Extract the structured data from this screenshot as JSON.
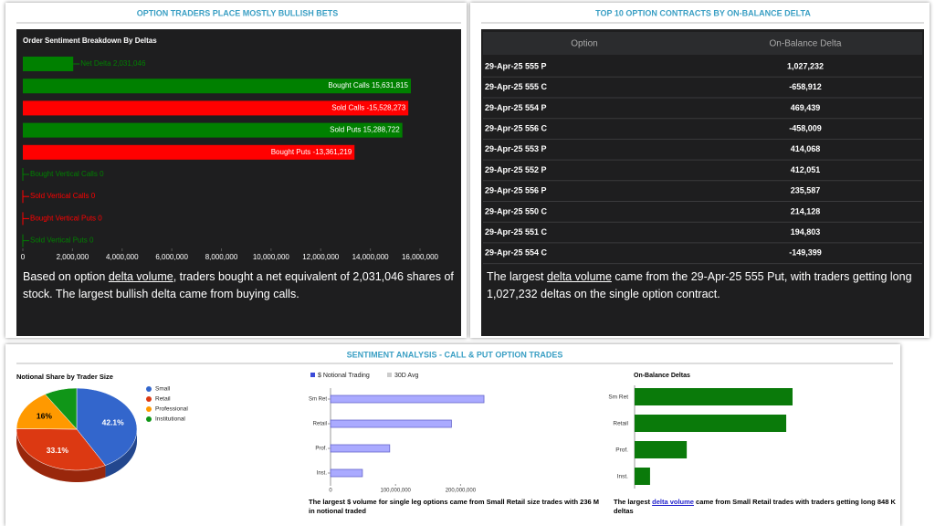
{
  "panels": [
    {
      "title": "OPTION TRADERS PLACE MOSTLY BULLISH BETS"
    },
    {
      "title": "TOP 10 OPTION CONTRACTS BY ON-BALANCE DELTA"
    },
    {
      "title": "SENTIMENT ANALYSIS - CALL & PUT OPTION TRADES"
    }
  ],
  "chart_data": [
    {
      "type": "hbar",
      "title": "Order Sentiment Breakdown By Deltas",
      "categories": [
        "Net Delta",
        "Bought Calls",
        "Sold Calls",
        "Sold Puts",
        "Bought Puts",
        "Bought Vertical Calls",
        "Sold Vertical Calls",
        "Bought Vertical Puts",
        "Sold Vertical Puts"
      ],
      "values": [
        2031046,
        15631815,
        -15528273,
        15288722,
        -13361219,
        0,
        0,
        0,
        0
      ],
      "value_labels": [
        "2,031,046",
        "15,631,815",
        "-15,528,273",
        "15,288,722",
        "-13,361,219",
        "0",
        "0",
        "0",
        "0"
      ],
      "colors": [
        "#008000",
        "#008000",
        "#ff0000",
        "#008000",
        "#ff0000",
        "#008000",
        "#ff0000",
        "#ff0000",
        "#008000"
      ],
      "xlim": [
        0,
        16000000
      ],
      "xticks": [
        0,
        {
          "value": 2000000,
          "label": "2,000,000"
        },
        {
          "value": 4000000,
          "label": "4,000,000"
        },
        {
          "value": 6000000,
          "label": "6,000,000"
        },
        {
          "value": 8000000,
          "label": "8,000,000"
        },
        {
          "value": 10000000,
          "label": "10,000,000"
        },
        {
          "value": 12000000,
          "label": "12,000,000"
        },
        {
          "value": 14000000,
          "label": "14,000,000"
        },
        {
          "value": 16000000,
          "label": "16,000,000"
        }
      ]
    },
    {
      "type": "pie3d",
      "title": "Notional Share by Trader Size",
      "categories": [
        "Small",
        "Retail",
        "Professional",
        "Institutional"
      ],
      "values": [
        42.1,
        33.1,
        16,
        8.8
      ],
      "value_labels": [
        "42.1%",
        "33.1%",
        "16%",
        null
      ],
      "colors": [
        "#3366cc",
        "#dc3912",
        "#ff9900",
        "#109618"
      ]
    },
    {
      "type": "hbar2",
      "categories": [
        "Sm Ret",
        "Retail",
        "Prof.",
        "Inst."
      ],
      "series": [
        {
          "name": "$ Notional Trading",
          "color": "#aaaaff",
          "values": [
            236000000,
            186000000,
            91000000,
            49000000
          ]
        },
        {
          "name": "30D Avg",
          "color": "#cccccc",
          "values": [
            null,
            null,
            null,
            null
          ]
        }
      ],
      "xlim": [
        0,
        250000000
      ],
      "xticks": [
        0,
        {
          "value": 100000000,
          "label": "100,000,000"
        },
        {
          "value": 200000000,
          "label": "200,000,000"
        }
      ]
    },
    {
      "type": "hbar3",
      "title": "On-Balance Deltas",
      "categories": [
        "Sm Ret",
        "Retail",
        "Prof.",
        "Inst."
      ],
      "values": [
        848000,
        814000,
        280000,
        83000
      ],
      "color": "#0a7a0a"
    }
  ],
  "table": {
    "columns": [
      "Option",
      "On-Balance Delta"
    ],
    "rows": [
      [
        "29-Apr-25 555 P",
        "1,027,232"
      ],
      [
        "29-Apr-25 555 C",
        "-658,912"
      ],
      [
        "29-Apr-25 554 P",
        "469,439"
      ],
      [
        "29-Apr-25 556 C",
        "-458,009"
      ],
      [
        "29-Apr-25 553 P",
        "414,068"
      ],
      [
        "29-Apr-25 552 P",
        "412,051"
      ],
      [
        "29-Apr-25 556 P",
        "235,587"
      ],
      [
        "29-Apr-25 550 C",
        "214,128"
      ],
      [
        "29-Apr-25 551 C",
        "194,803"
      ],
      [
        "29-Apr-25 554 C",
        "-149,399"
      ]
    ]
  },
  "captions": [
    [
      "Based on option ",
      "delta volume",
      ", traders bought a net equivalent of 2,031,046 shares of stock. The largest bullish delta came from buying calls."
    ],
    [
      "The largest ",
      "delta volume",
      " came from the 29-Apr-25 555 Put, with traders getting long 1,027,232 deltas on the single option contract."
    ],
    [
      "The largest $ volume for single leg options came from Small Retail size trades with 236 M in notional traded"
    ],
    [
      "The largest ",
      "delta volume",
      " came from Small Retail trades with traders getting long 848 K deltas"
    ]
  ]
}
